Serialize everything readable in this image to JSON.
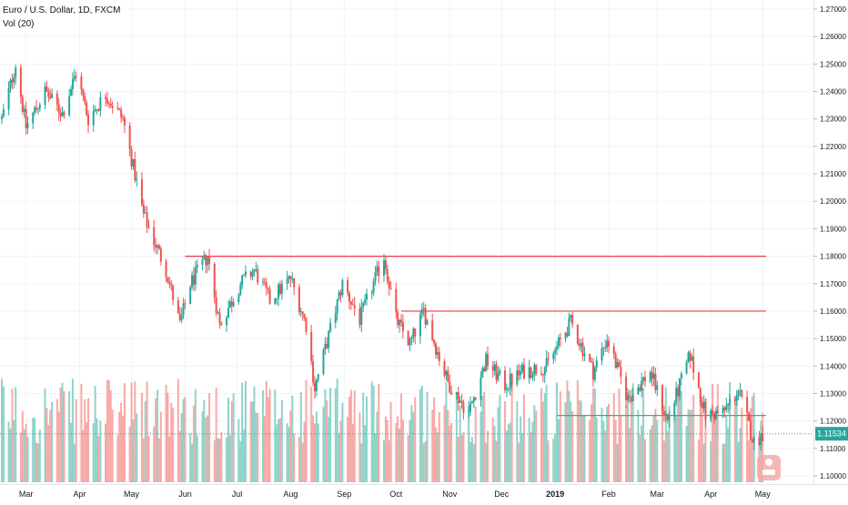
{
  "legend": {
    "symbol": "Euro / U.S. Dollar, 1D, FXCM",
    "volume": "Vol (20)"
  },
  "price_badge": "1.11534",
  "colors": {
    "up": "#26a69a",
    "down": "#ef5350",
    "up_volume": "#8fd3c9",
    "down_volume": "#f7a9a7",
    "resistance": "#f23645",
    "support": "#4caf50",
    "last_price": "#26a69a",
    "grid": "#f0f3fa",
    "axis_text": "#131722"
  },
  "chart_data": {
    "type": "candlestick",
    "title": "Euro / U.S. Dollar, 1D, FXCM",
    "xlabel": "",
    "ylabel": "",
    "ylim": [
      1.0955,
      1.2735
    ],
    "y_ticks": [
      "1.27000",
      "1.26000",
      "1.25000",
      "1.24000",
      "1.23000",
      "1.22000",
      "1.21000",
      "1.20000",
      "1.19000",
      "1.18000",
      "1.17000",
      "1.16000",
      "1.15000",
      "1.14000",
      "1.13000",
      "1.12000",
      "1.11000",
      "1.10000"
    ],
    "x_ticks": [
      "Mar",
      "Apr",
      "May",
      "Jun",
      "Jul",
      "Aug",
      "Sep",
      "Oct",
      "Nov",
      "Dec",
      "2019",
      "Feb",
      "Mar",
      "Apr",
      "May"
    ],
    "price_path": [
      [
        "2018-02-15",
        1.23
      ],
      [
        "2018-02-23",
        1.25
      ],
      [
        "2018-03-01",
        1.227
      ],
      [
        "2018-03-12",
        1.24
      ],
      [
        "2018-03-22",
        1.232
      ],
      [
        "2018-03-30",
        1.247
      ],
      [
        "2018-04-06",
        1.23
      ],
      [
        "2018-04-16",
        1.239
      ],
      [
        "2018-04-26",
        1.23
      ],
      [
        "2018-05-08",
        1.195
      ],
      [
        "2018-05-21",
        1.175
      ],
      [
        "2018-05-29",
        1.155
      ],
      [
        "2018-06-04",
        1.17
      ],
      [
        "2018-06-14",
        1.18
      ],
      [
        "2018-06-21",
        1.155
      ],
      [
        "2018-07-03",
        1.17
      ],
      [
        "2018-07-11",
        1.175
      ],
      [
        "2018-07-20",
        1.164
      ],
      [
        "2018-08-01",
        1.172
      ],
      [
        "2018-08-10",
        1.155
      ],
      [
        "2018-08-15",
        1.132
      ],
      [
        "2018-08-31",
        1.17
      ],
      [
        "2018-09-10",
        1.157
      ],
      [
        "2018-09-24",
        1.18
      ],
      [
        "2018-10-01",
        1.157
      ],
      [
        "2018-10-09",
        1.148
      ],
      [
        "2018-10-17",
        1.16
      ],
      [
        "2018-10-31",
        1.134
      ],
      [
        "2018-11-12",
        1.123
      ],
      [
        "2018-11-22",
        1.142
      ],
      [
        "2018-12-03",
        1.133
      ],
      [
        "2018-12-13",
        1.138
      ],
      [
        "2018-12-27",
        1.14
      ],
      [
        "2019-01-10",
        1.156
      ],
      [
        "2019-01-23",
        1.138
      ],
      [
        "2019-01-31",
        1.15
      ],
      [
        "2019-02-12",
        1.128
      ],
      [
        "2019-02-25",
        1.138
      ],
      [
        "2019-03-07",
        1.12
      ],
      [
        "2019-03-20",
        1.144
      ],
      [
        "2019-03-29",
        1.122
      ],
      [
        "2019-04-08",
        1.123
      ],
      [
        "2019-04-17",
        1.131
      ],
      [
        "2019-04-26",
        1.112
      ],
      [
        "2019-05-01",
        1.1153
      ]
    ],
    "volume_axis": [
      0,
      1
    ],
    "horizontal_lines": [
      {
        "color": "#f23645",
        "price": 1.18,
        "from": "2018-06-01",
        "to": "2019-05-03"
      },
      {
        "color": "#f23645",
        "price": 1.16,
        "from": "2018-10-04",
        "to": "2019-05-03"
      },
      {
        "color": "#4caf50",
        "price": 1.122,
        "from": "2019-01-02",
        "to": "2019-05-03"
      }
    ],
    "last_price": 1.11534,
    "grid": true
  }
}
